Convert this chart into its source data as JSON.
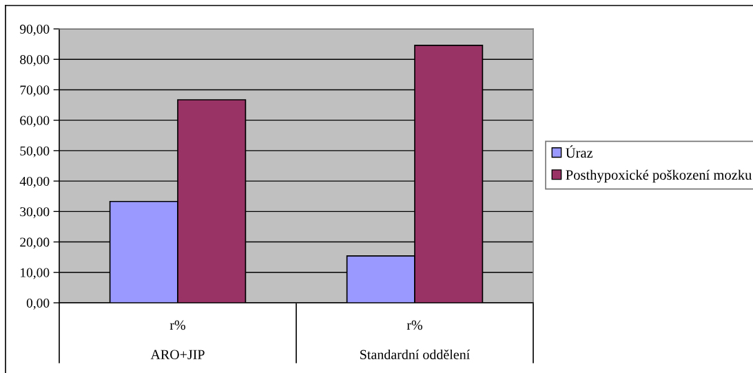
{
  "chart_data": {
    "type": "bar",
    "categories": [
      "r%",
      "r%"
    ],
    "series": [
      {
        "name": "Úraz",
        "color": "#9999ff",
        "values": [
          33.3,
          15.4
        ]
      },
      {
        "name": "Posthypoxické poškození mozku",
        "color": "#993366",
        "values": [
          66.7,
          84.6
        ]
      }
    ],
    "ylim": [
      0,
      90
    ],
    "yticks": [
      {
        "value": 0,
        "label": "0,00"
      },
      {
        "value": 10,
        "label": "10,00"
      },
      {
        "value": 20,
        "label": "20,00"
      },
      {
        "value": 30,
        "label": "30,00"
      },
      {
        "value": 40,
        "label": "40,00"
      },
      {
        "value": 50,
        "label": "50,00"
      },
      {
        "value": 60,
        "label": "60,00"
      },
      {
        "value": 70,
        "label": "70,00"
      },
      {
        "value": 80,
        "label": "80,00"
      },
      {
        "value": 90,
        "label": "90,00"
      }
    ],
    "grid": "y",
    "legend": "right",
    "annotations": [
      "ARO+JIP",
      "Standardní oddělení"
    ]
  }
}
